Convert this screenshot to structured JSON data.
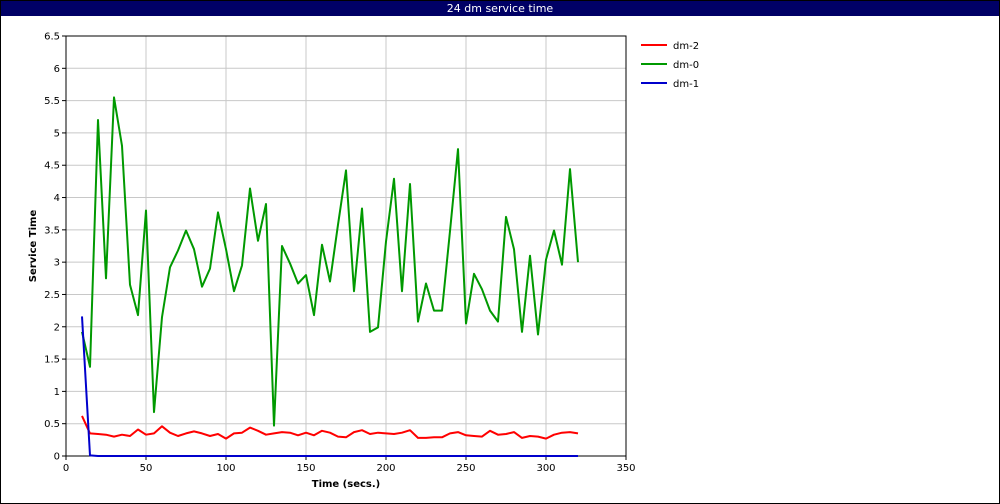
{
  "chart_data": {
    "type": "line",
    "title": "24 dm service time",
    "xlabel": "Time (secs.)",
    "ylabel": "Service Time",
    "xlim": [
      0,
      350
    ],
    "ylim": [
      0,
      6.5
    ],
    "xticks": [
      0,
      50,
      100,
      150,
      200,
      250,
      300,
      350
    ],
    "yticks": [
      0,
      0.5,
      1,
      1.5,
      2,
      2.5,
      3,
      3.5,
      4,
      4.5,
      5,
      5.5,
      6,
      6.5
    ],
    "grid": true,
    "legend_position": "right",
    "series": [
      {
        "name": "dm-2",
        "color": "#ff0000",
        "x": [
          10,
          15,
          20,
          25,
          30,
          35,
          40,
          45,
          50,
          55,
          60,
          65,
          70,
          75,
          80,
          85,
          90,
          95,
          100,
          105,
          110,
          115,
          120,
          125,
          130,
          135,
          140,
          145,
          150,
          155,
          160,
          165,
          170,
          175,
          180,
          185,
          190,
          195,
          200,
          205,
          210,
          215,
          220,
          225,
          230,
          235,
          240,
          245,
          250,
          255,
          260,
          265,
          270,
          275,
          280,
          285,
          290,
          295,
          300,
          305,
          310,
          315,
          320
        ],
        "y": [
          0.62,
          0.35,
          0.34,
          0.33,
          0.3,
          0.33,
          0.31,
          0.41,
          0.33,
          0.35,
          0.46,
          0.36,
          0.31,
          0.35,
          0.38,
          0.35,
          0.31,
          0.34,
          0.27,
          0.35,
          0.36,
          0.44,
          0.39,
          0.33,
          0.35,
          0.37,
          0.36,
          0.32,
          0.36,
          0.32,
          0.39,
          0.36,
          0.3,
          0.29,
          0.37,
          0.4,
          0.34,
          0.36,
          0.35,
          0.34,
          0.36,
          0.4,
          0.28,
          0.28,
          0.29,
          0.29,
          0.35,
          0.37,
          0.32,
          0.31,
          0.3,
          0.39,
          0.33,
          0.34,
          0.37,
          0.28,
          0.31,
          0.3,
          0.27,
          0.33,
          0.36,
          0.37,
          0.35
        ]
      },
      {
        "name": "dm-0",
        "color": "#009900",
        "x": [
          10,
          15,
          20,
          25,
          30,
          35,
          40,
          45,
          50,
          55,
          60,
          65,
          70,
          75,
          80,
          85,
          90,
          95,
          100,
          105,
          110,
          115,
          120,
          125,
          130,
          135,
          140,
          145,
          150,
          155,
          160,
          165,
          170,
          175,
          180,
          185,
          190,
          195,
          200,
          205,
          210,
          215,
          220,
          225,
          230,
          235,
          240,
          245,
          250,
          255,
          260,
          265,
          270,
          275,
          280,
          285,
          290,
          295,
          300,
          305,
          310,
          315,
          320
        ],
        "y": [
          1.92,
          1.38,
          5.2,
          2.75,
          5.55,
          4.8,
          2.65,
          2.18,
          3.8,
          0.68,
          2.15,
          2.92,
          3.18,
          3.49,
          3.2,
          2.62,
          2.9,
          3.77,
          3.2,
          2.55,
          2.95,
          4.14,
          3.33,
          3.9,
          0.47,
          3.25,
          2.98,
          2.67,
          2.8,
          2.18,
          3.27,
          2.7,
          3.58,
          4.42,
          2.55,
          3.83,
          1.92,
          1.99,
          3.32,
          4.29,
          2.55,
          4.21,
          2.08,
          2.67,
          2.25,
          2.25,
          3.48,
          4.75,
          2.05,
          2.82,
          2.58,
          2.25,
          2.08,
          3.7,
          3.2,
          1.92,
          3.1,
          1.88,
          3.04,
          3.49,
          2.96,
          4.44,
          3.0
        ]
      },
      {
        "name": "dm-1",
        "color": "#0000cc",
        "x": [
          10,
          15,
          20,
          30,
          40,
          50,
          60,
          80,
          100,
          150,
          200,
          250,
          300,
          320
        ],
        "y": [
          2.16,
          0.01,
          0.0,
          0.0,
          0.0,
          0.0,
          0.0,
          0.0,
          0.0,
          0.0,
          0.0,
          0.0,
          0.0,
          0.0
        ]
      }
    ]
  }
}
